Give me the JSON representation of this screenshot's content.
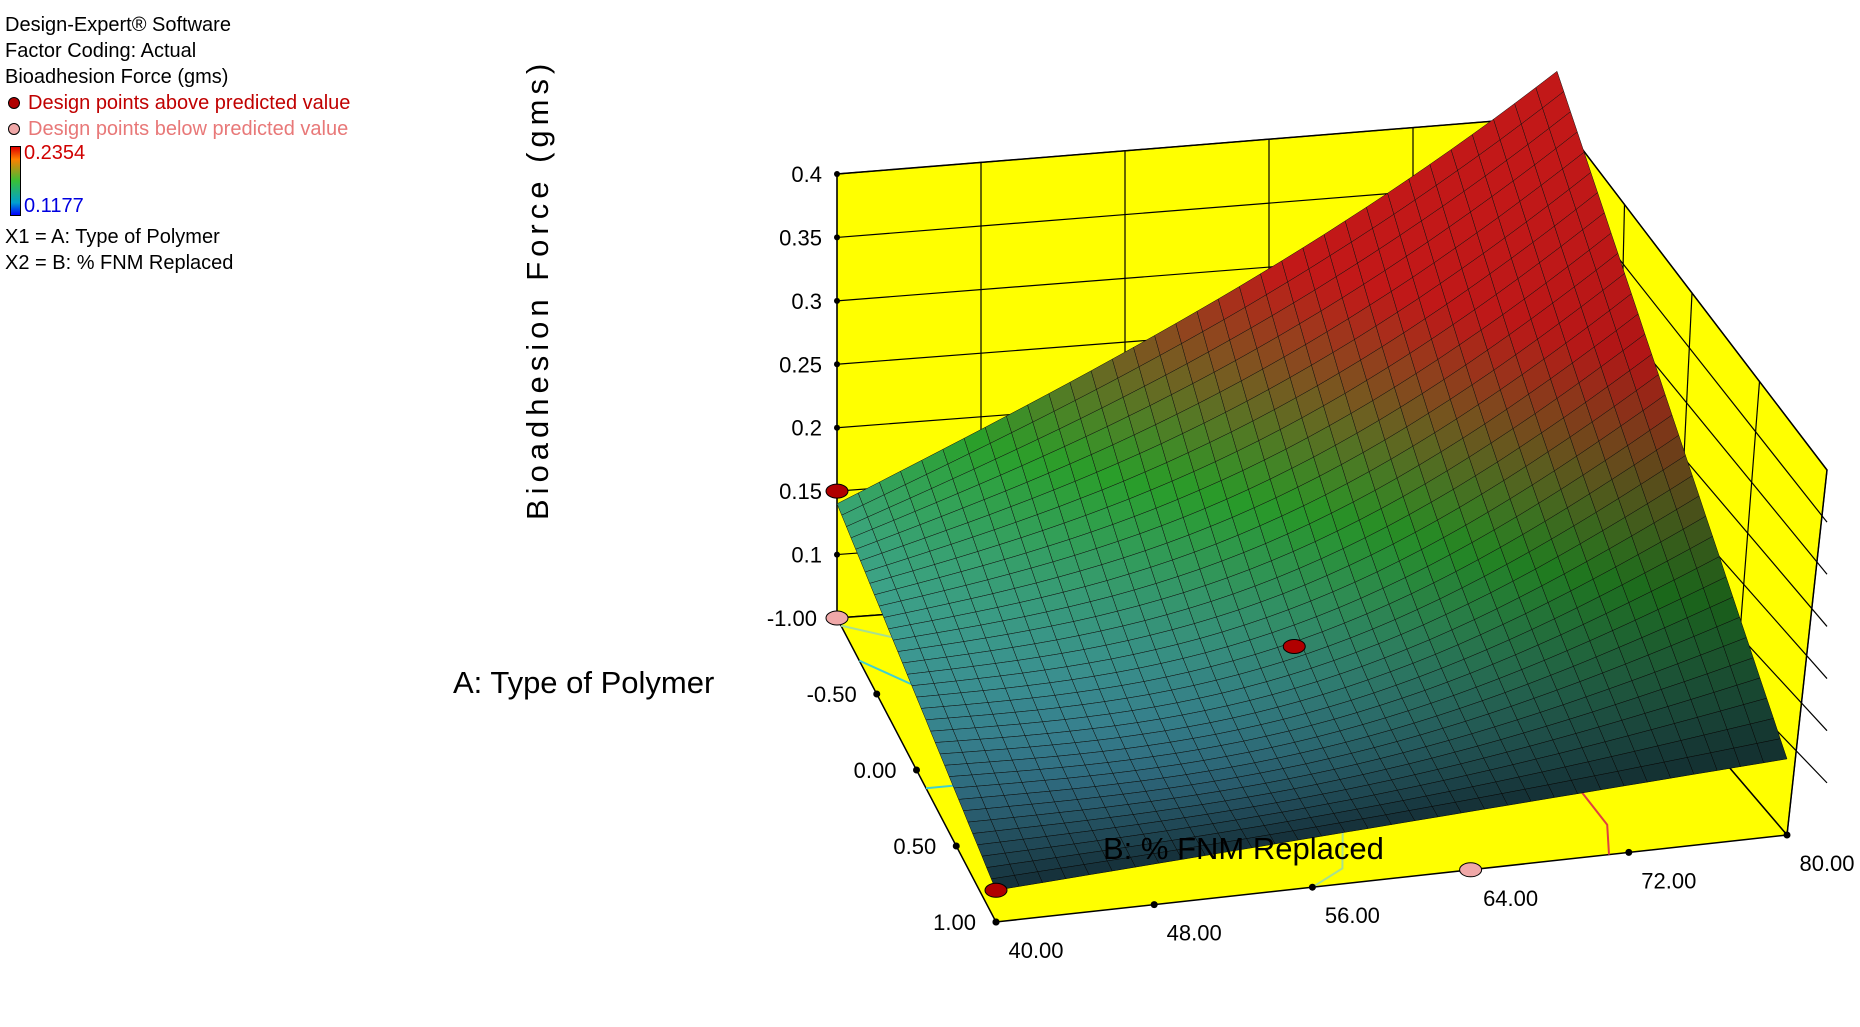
{
  "legend": {
    "software": "Design-Expert® Software",
    "coding": "Factor Coding: Actual",
    "response": "Bioadhesion Force (gms)",
    "above_label": "Design points above predicted value",
    "below_label": "Design points below predicted value",
    "color_max": "0.2354",
    "color_min": "0.1177",
    "x1_def": "X1 = A: Type of Polymer",
    "x2_def": "X2 = B: % FNM Replaced"
  },
  "colors": {
    "above_point": "#b00000",
    "below_point": "#f0a8a8",
    "floor": "#ffff00",
    "surface_low": "#4aa8c8",
    "surface_mid": "#2aa02a",
    "surface_high": "#c21818"
  },
  "chart_data": {
    "type": "surface",
    "zlabel": "Bioadhesion Force (gms)",
    "xlabel": "A: Type of Polymer",
    "ylabel": "B: % FNM Replaced",
    "xlim": [
      -1,
      1
    ],
    "ylim": [
      40,
      80
    ],
    "zlim": [
      0.05,
      0.4
    ],
    "x_ticks": [
      "-1.00",
      "-0.50",
      "0.00",
      "0.50",
      "1.00"
    ],
    "y_ticks": [
      "40.00",
      "48.00",
      "56.00",
      "64.00",
      "72.00",
      "80.00"
    ],
    "z_ticks": [
      "0.1",
      "0.15",
      "0.2",
      "0.25",
      "0.3",
      "0.35",
      "0.4"
    ],
    "surface_corners": [
      {
        "A": -1,
        "B": 40,
        "z": 0.14
      },
      {
        "A": -1,
        "B": 80,
        "z": 0.39
      },
      {
        "A": 1,
        "B": 40,
        "z": 0.075
      },
      {
        "A": 1,
        "B": 80,
        "z": 0.11
      }
    ],
    "design_points": [
      {
        "A": -1,
        "B": 40,
        "z": 0.15,
        "type": "above"
      },
      {
        "A": 0,
        "B": 60,
        "z": 0.12,
        "type": "above"
      },
      {
        "A": 1,
        "B": 40,
        "z": 0.075,
        "type": "above"
      },
      {
        "A": -1,
        "B": 40,
        "z": 0.05,
        "type": "below"
      },
      {
        "A": 1,
        "B": 64,
        "z": 0.05,
        "type": "below"
      }
    ]
  }
}
